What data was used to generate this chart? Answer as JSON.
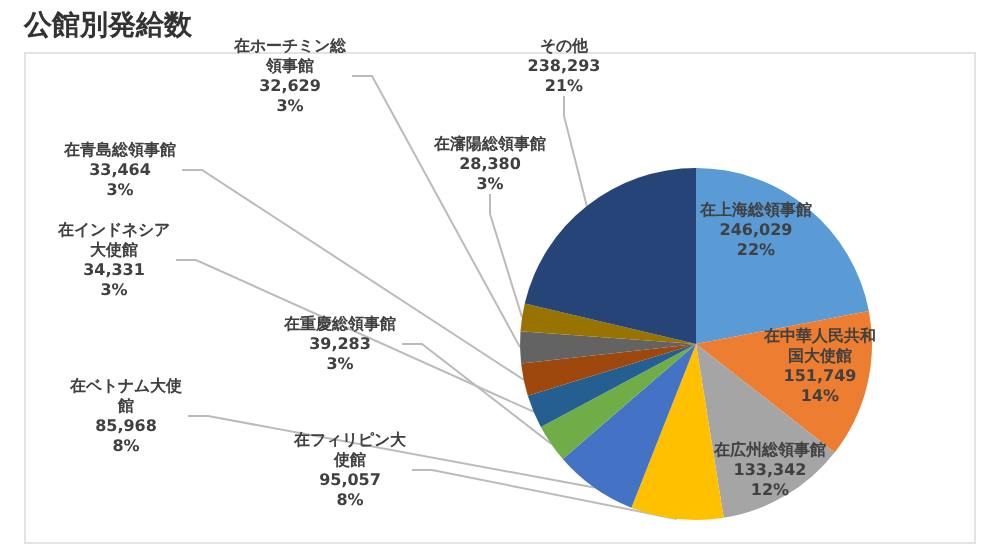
{
  "chart_data": {
    "type": "pie",
    "title": "公館別発給数",
    "categories": [
      "在上海総領事館",
      "在中華人民共和国大使館",
      "在広州総領事館",
      "在フィリピン大使館",
      "在ベトナム大使館",
      "在重慶総領事館",
      "在インドネシア大使館",
      "在青島総領事館",
      "在ホーチミン総領事館",
      "在瀋陽総領事館",
      "その他"
    ],
    "values": [
      246029,
      151749,
      133342,
      95057,
      85968,
      39283,
      34331,
      33464,
      32629,
      28380,
      238293
    ],
    "value_labels": [
      "246,029\n22%",
      "151,749\n14%",
      "133,342\n12%",
      "95,057\n8%",
      "85,968\n8%",
      "39,283\n3%",
      "34,331\n3%",
      "33,464\n3%",
      "32,629\n3%",
      "28,380\n3%",
      "238,293\n21%"
    ],
    "colors": [
      "#5b9bd5",
      "#ed7d31",
      "#a5a5a5",
      "#ffc000",
      "#4472c4",
      "#70ad47",
      "#255e91",
      "#9e480e",
      "#636363",
      "#997300",
      "#264478"
    ],
    "legend": false
  }
}
